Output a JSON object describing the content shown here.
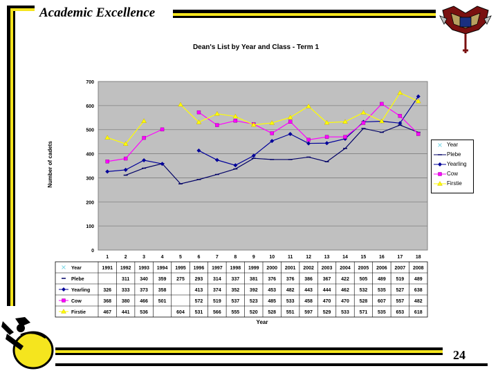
{
  "slide": {
    "title": "Academic Excellence",
    "page_number": "24",
    "colors": {
      "accent_yellow": "#f5e51e",
      "black": "#000000"
    },
    "logo_icon": "crest-icon",
    "mascot_icon": "mascot-icon"
  },
  "chart_data": {
    "type": "line",
    "title": "Dean's List by  Year and Class - Term 1",
    "xlabel": "Year",
    "ylabel": "Number of cadets",
    "ylim": [
      0,
      700
    ],
    "yticks": [
      0,
      100,
      200,
      300,
      400,
      500,
      600,
      700
    ],
    "grid": true,
    "legend_position": "right",
    "plot_background": "#c0c0c0",
    "categories": [
      "1",
      "2",
      "3",
      "4",
      "5",
      "6",
      "7",
      "8",
      "9",
      "10",
      "11",
      "12",
      "13",
      "14",
      "15",
      "16",
      "17",
      "18"
    ],
    "series": [
      {
        "name": "Year",
        "color": "#7fd8e6",
        "marker": "x",
        "values": [
          1991,
          1992,
          1993,
          1994,
          1995,
          1996,
          1997,
          1998,
          1999,
          2000,
          2001,
          2002,
          2003,
          2004,
          2005,
          2006,
          2007,
          2008
        ],
        "labels": [
          "1991",
          "1992",
          "1993",
          "1994",
          "1995",
          "1996",
          "1997",
          "1998",
          "1999",
          "2000",
          "2001",
          "2002",
          "2003",
          "2004",
          "2005",
          "2006",
          "2007",
          "2008"
        ]
      },
      {
        "name": "Plebe",
        "color": "#000066",
        "marker": "dash",
        "values": [
          null,
          311,
          340,
          359,
          275,
          293,
          314,
          337,
          381,
          376,
          376,
          386,
          367,
          422,
          505,
          489,
          519,
          489
        ],
        "labels": [
          "",
          "311",
          "340",
          "359",
          "275",
          "293",
          "314",
          "337",
          "381",
          "376",
          "376",
          "386",
          "367",
          "422",
          "505",
          "489",
          "519",
          "489"
        ]
      },
      {
        "name": "Yearling",
        "color": "#000099",
        "marker": "diamond",
        "values": [
          326,
          333,
          373,
          358,
          null,
          413,
          374,
          352,
          392,
          453,
          482,
          443,
          444,
          462,
          532,
          535,
          527,
          638
        ],
        "labels": [
          "326",
          "333",
          "373",
          "358",
          "",
          "413",
          "374",
          "352",
          "392",
          "453",
          "482",
          "443",
          "444",
          "462",
          "532",
          "535",
          "527",
          "638"
        ]
      },
      {
        "name": "Cow",
        "color": "#ff00ff",
        "marker": "square",
        "values": [
          368,
          380,
          466,
          501,
          null,
          572,
          519,
          537,
          523,
          485,
          533,
          458,
          470,
          470,
          528,
          607,
          557,
          482
        ],
        "labels": [
          "368",
          "380",
          "466",
          "501",
          "",
          "572",
          "519",
          "537",
          "523",
          "485",
          "533",
          "458",
          "470",
          "470",
          "528",
          "607",
          "557",
          "482"
        ]
      },
      {
        "name": "Firstie",
        "color": "#ffff00",
        "marker": "triangle",
        "values": [
          467,
          441,
          536,
          null,
          604,
          531,
          566,
          555,
          520,
          528,
          551,
          597,
          529,
          533,
          571,
          535,
          653,
          618
        ],
        "labels": [
          "467",
          "441",
          "536",
          "",
          "604",
          "531",
          "566",
          "555",
          "520",
          "528",
          "551",
          "597",
          "529",
          "533",
          "571",
          "535",
          "653",
          "618"
        ]
      }
    ]
  }
}
